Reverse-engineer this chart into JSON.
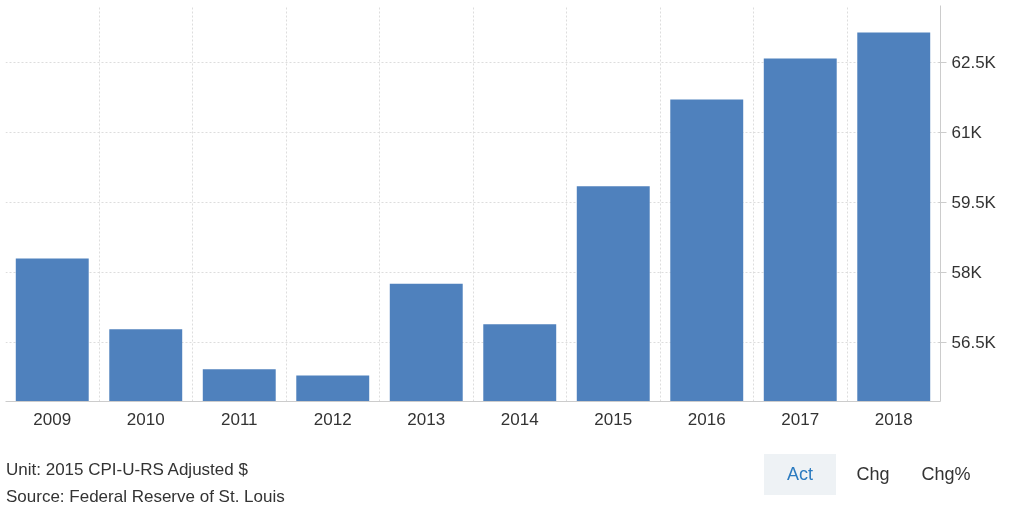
{
  "chart_data": {
    "type": "bar",
    "categories": [
      "2009",
      "2010",
      "2011",
      "2012",
      "2013",
      "2014",
      "2015",
      "2016",
      "2017",
      "2018"
    ],
    "values": [
      58.3,
      56.78,
      55.92,
      55.79,
      57.76,
      56.89,
      59.85,
      61.71,
      62.59,
      63.15
    ],
    "color": "#4f81bd",
    "ylim": [
      55.23,
      63.73
    ],
    "yticks": [
      {
        "value": 56.5,
        "label": "56.5K"
      },
      {
        "value": 58,
        "label": "58K"
      },
      {
        "value": 59.5,
        "label": "59.5K"
      },
      {
        "value": 61,
        "label": "61K"
      },
      {
        "value": 62.5,
        "label": "62.5K"
      }
    ],
    "grid": true,
    "annotations": [
      "Unit: 2015 CPI-U-RS Adjusted $",
      "Source: Federal Reserve of St. Louis",
      "Act",
      "Chg",
      "Chg%"
    ]
  }
}
